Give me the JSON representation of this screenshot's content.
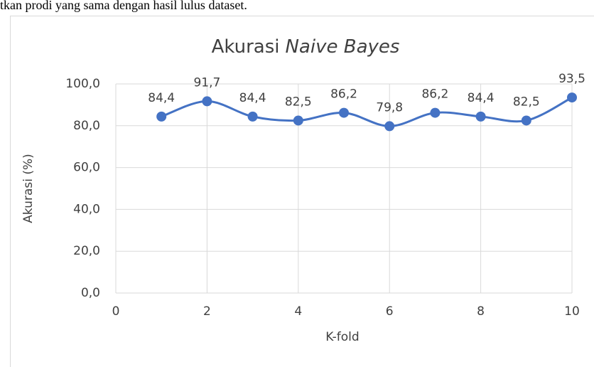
{
  "document_text": "tkan prodi yang sama dengan hasil lulus dataset.",
  "chart_data": {
    "type": "line",
    "title": [
      "Akurasi",
      "Naive Bayes"
    ],
    "xlabel": "K-fold",
    "ylabel": "Akurasi (%)",
    "x": [
      1,
      2,
      3,
      4,
      5,
      6,
      7,
      8,
      9,
      10
    ],
    "series": [
      {
        "name": "Akurasi",
        "color": "#4472c4",
        "values": [
          84.4,
          91.7,
          84.4,
          82.5,
          86.2,
          79.8,
          86.2,
          84.4,
          82.5,
          93.5
        ],
        "value_labels": [
          "84,4",
          "91,7",
          "84,4",
          "82,5",
          "86,2",
          "79,8",
          "86,2",
          "84,4",
          "82,5",
          "93,5"
        ]
      }
    ],
    "xlim": [
      0,
      10
    ],
    "xticks": [
      0,
      2,
      4,
      6,
      8,
      10
    ],
    "ylim": [
      0,
      100
    ],
    "yticks": [
      {
        "value": 0,
        "label": "0,0"
      },
      {
        "value": 20,
        "label": "20,0"
      },
      {
        "value": 40,
        "label": "40,0"
      },
      {
        "value": 60,
        "label": "60,0"
      },
      {
        "value": 80,
        "label": "80,0"
      },
      {
        "value": 100,
        "label": "100,0"
      }
    ],
    "grid": true,
    "smooth": true
  }
}
